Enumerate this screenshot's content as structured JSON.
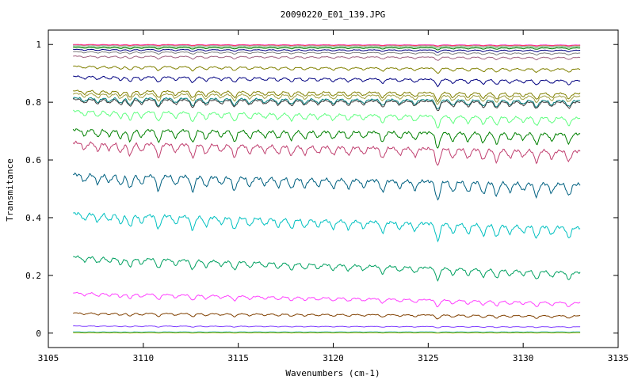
{
  "chart_data": {
    "type": "line",
    "title": "20090220_E01_139.JPG",
    "xlabel": "Wavenumbers (cm-1)",
    "ylabel": "Transmitance",
    "xlim": [
      3105,
      3135
    ],
    "ylim": [
      -0.05,
      1.05
    ],
    "x_ticks": [
      "3105",
      "3110",
      "3115",
      "3120",
      "3125",
      "3130",
      "3135"
    ],
    "y_ticks": [
      "0",
      "0.2",
      "0.4",
      "0.6",
      "0.8",
      "1"
    ],
    "x_tick_values": [
      3105,
      3110,
      3115,
      3120,
      3125,
      3130,
      3135
    ],
    "y_tick_values": [
      0,
      0.2,
      0.4,
      0.6,
      0.8,
      1
    ],
    "x_range": [
      3106.3,
      3133.0
    ],
    "grid": false,
    "legend": "none",
    "absorption_features": [
      {
        "x": 3106.9,
        "depth": 0.5
      },
      {
        "x": 3107.6,
        "depth": 0.6
      },
      {
        "x": 3108.2,
        "depth": 0.5
      },
      {
        "x": 3108.8,
        "depth": 0.7
      },
      {
        "x": 3109.3,
        "depth": 0.9
      },
      {
        "x": 3109.9,
        "depth": 0.6
      },
      {
        "x": 3110.8,
        "depth": 1.0
      },
      {
        "x": 3111.7,
        "depth": 0.6
      },
      {
        "x": 3112.6,
        "depth": 1.0
      },
      {
        "x": 3113.3,
        "depth": 0.7
      },
      {
        "x": 3114.1,
        "depth": 0.5
      },
      {
        "x": 3114.8,
        "depth": 0.9
      },
      {
        "x": 3115.6,
        "depth": 0.6
      },
      {
        "x": 3116.4,
        "depth": 0.5
      },
      {
        "x": 3117.1,
        "depth": 0.6
      },
      {
        "x": 3117.8,
        "depth": 0.7
      },
      {
        "x": 3118.5,
        "depth": 0.6
      },
      {
        "x": 3119.2,
        "depth": 0.5
      },
      {
        "x": 3120.0,
        "depth": 0.6
      },
      {
        "x": 3120.8,
        "depth": 0.6
      },
      {
        "x": 3121.6,
        "depth": 0.5
      },
      {
        "x": 3122.6,
        "depth": 0.8
      },
      {
        "x": 3123.5,
        "depth": 0.5
      },
      {
        "x": 3124.3,
        "depth": 0.6
      },
      {
        "x": 3125.5,
        "depth": 1.3
      },
      {
        "x": 3126.3,
        "depth": 0.7
      },
      {
        "x": 3127.1,
        "depth": 0.7
      },
      {
        "x": 3127.9,
        "depth": 0.8
      },
      {
        "x": 3128.6,
        "depth": 0.9
      },
      {
        "x": 3129.3,
        "depth": 0.6
      },
      {
        "x": 3130.0,
        "depth": 0.5
      },
      {
        "x": 3130.7,
        "depth": 0.9
      },
      {
        "x": 3131.5,
        "depth": 0.6
      },
      {
        "x": 3132.4,
        "depth": 0.8
      }
    ],
    "series": [
      {
        "color": "#ff00ff",
        "start": 1.0,
        "end": 0.998,
        "amplitude": 0.003
      },
      {
        "color": "#ff4040",
        "start": 0.999,
        "end": 0.997,
        "amplitude": 0.003
      },
      {
        "color": "#aaaaaa",
        "start": 0.997,
        "end": 0.995,
        "amplitude": 0.004
      },
      {
        "color": "#80c080",
        "start": 0.993,
        "end": 0.992,
        "amplitude": 0.005
      },
      {
        "color": "#008000",
        "start": 0.99,
        "end": 0.988,
        "amplitude": 0.006
      },
      {
        "color": "#000080",
        "start": 0.983,
        "end": 0.98,
        "amplitude": 0.007
      },
      {
        "color": "#808080",
        "start": 0.975,
        "end": 0.97,
        "amplitude": 0.008
      },
      {
        "color": "#a06080",
        "start": 0.96,
        "end": 0.955,
        "amplitude": 0.01
      },
      {
        "color": "#808000",
        "start": 0.925,
        "end": 0.915,
        "amplitude": 0.015
      },
      {
        "color": "#000080",
        "start": 0.89,
        "end": 0.875,
        "amplitude": 0.02
      },
      {
        "color": "#808000",
        "start": 0.84,
        "end": 0.83,
        "amplitude": 0.025
      },
      {
        "color": "#a0a040",
        "start": 0.83,
        "end": 0.82,
        "amplitude": 0.026
      },
      {
        "color": "#008080",
        "start": 0.815,
        "end": 0.805,
        "amplitude": 0.028
      },
      {
        "color": "#404040",
        "start": 0.81,
        "end": 0.8,
        "amplitude": 0.028
      },
      {
        "color": "#60ff80",
        "start": 0.77,
        "end": 0.745,
        "amplitude": 0.035
      },
      {
        "color": "#008000",
        "start": 0.705,
        "end": 0.69,
        "amplitude": 0.045
      },
      {
        "color": "#c04070",
        "start": 0.66,
        "end": 0.63,
        "amplitude": 0.05
      },
      {
        "color": "#006080",
        "start": 0.55,
        "end": 0.515,
        "amplitude": 0.055
      },
      {
        "color": "#00c0c0",
        "start": 0.415,
        "end": 0.365,
        "amplitude": 0.05
      },
      {
        "color": "#00a060",
        "start": 0.265,
        "end": 0.21,
        "amplitude": 0.035
      },
      {
        "color": "#ff40ff",
        "start": 0.14,
        "end": 0.105,
        "amplitude": 0.02
      },
      {
        "color": "#804000",
        "start": 0.07,
        "end": 0.06,
        "amplitude": 0.012
      },
      {
        "color": "#8040ff",
        "start": 0.025,
        "end": 0.022,
        "amplitude": 0.004
      },
      {
        "color": "#00a0a0",
        "start": 0.004,
        "end": 0.004,
        "amplitude": 0.002
      },
      {
        "color": "#c0c000",
        "start": 0.001,
        "end": 0.001,
        "amplitude": 0.001
      }
    ]
  }
}
